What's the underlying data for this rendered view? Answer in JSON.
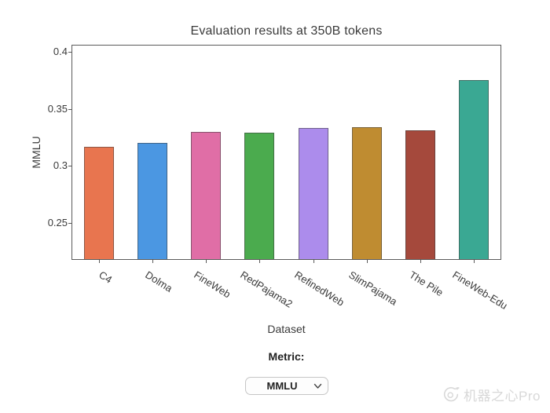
{
  "chart_data": {
    "type": "bar",
    "title": "Evaluation results at 350B tokens",
    "xlabel": "Dataset",
    "ylabel": "MMLU",
    "categories": [
      "C4",
      "Dolma",
      "FineWeb",
      "RedPajama2",
      "RefinedWeb",
      "SlimPajama",
      "The Pile",
      "FineWeb-Edu"
    ],
    "values": [
      0.317,
      0.32,
      0.33,
      0.329,
      0.333,
      0.334,
      0.331,
      0.375
    ],
    "bar_colors": [
      "#e8754f",
      "#4b97e2",
      "#e06ea6",
      "#4bab4e",
      "#ac8cec",
      "#bf8c31",
      "#a5493c",
      "#3aa893"
    ],
    "bar_edge_color": "rgba(62,62,62,0.55)",
    "axis_color": "#5a5a5a",
    "text_color": "#3a3a3a",
    "ylim": [
      0.2185,
      0.4055
    ],
    "yticks": [
      0.4,
      0.35,
      0.3,
      0.25
    ],
    "ytick_labels": [
      "0.4",
      "0.35",
      "0.3",
      "0.25"
    ],
    "grid": false,
    "legend": "none",
    "x_label_rotation_deg": 32
  },
  "controls": {
    "metric_label": "Metric:",
    "metric_select": {
      "value": "MMLU",
      "options": [
        "MMLU"
      ]
    }
  },
  "watermark": {
    "text": "机器之心Pro"
  }
}
